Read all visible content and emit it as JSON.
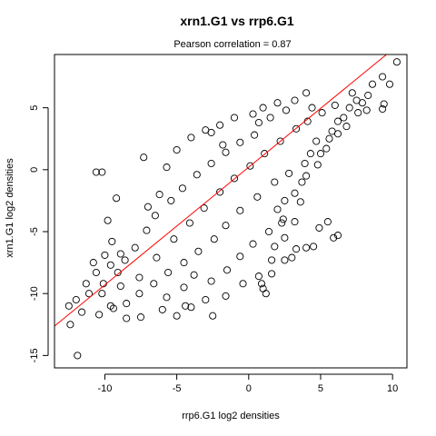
{
  "chart_data": {
    "type": "scatter",
    "title": "xrn1.G1 vs rrp6.G1",
    "subtitle_prefix": "Pearson correlation = ",
    "subtitle_value": "0.87",
    "xlabel": "rrp6.G1 log2 densities",
    "ylabel": "xrn1.G1 log2 densities",
    "xlim": [
      -13.5,
      11.0
    ],
    "ylim": [
      -16.0,
      9.3
    ],
    "xticks": [
      -10,
      -5,
      0,
      5,
      10
    ],
    "xtick_labels": [
      "-10",
      "-5",
      "0",
      "5",
      "10"
    ],
    "yticks": [
      -15,
      -10,
      -5,
      0,
      5
    ],
    "ytick_labels": [
      "-15",
      "-10",
      "-5",
      "0",
      "5"
    ],
    "grid": false,
    "legend": "none",
    "fit_line": {
      "intercept": 0.2,
      "slope": 0.95,
      "color": "#ff0000"
    },
    "point_color": "#000000",
    "points": [
      [
        10.3,
        8.7
      ],
      [
        9.3,
        7.5
      ],
      [
        9.8,
        6.9
      ],
      [
        8.6,
        6.9
      ],
      [
        8.3,
        6.0
      ],
      [
        9.4,
        5.3
      ],
      [
        9.3,
        4.9
      ],
      [
        8.2,
        4.8
      ],
      [
        7.6,
        4.6
      ],
      [
        7.5,
        5.6
      ],
      [
        7.0,
        5.0
      ],
      [
        6.6,
        4.2
      ],
      [
        6.2,
        3.9
      ],
      [
        5.8,
        3.1
      ],
      [
        4.3,
        1.3
      ],
      [
        4.7,
        2.3
      ],
      [
        5.4,
        1.7
      ],
      [
        4.8,
        0.4
      ],
      [
        4.0,
        -0.5
      ],
      [
        3.7,
        -1.0
      ],
      [
        3.2,
        -1.9
      ],
      [
        3.6,
        -2.6
      ],
      [
        2.5,
        -2.5
      ],
      [
        2.4,
        -4.0
      ],
      [
        2.5,
        -5.5
      ],
      [
        3.2,
        -4.2
      ],
      [
        4.0,
        -6.3
      ],
      [
        4.5,
        -6.2
      ],
      [
        5.5,
        -4.2
      ],
      [
        4.9,
        -4.7
      ],
      [
        6.2,
        -5.3
      ],
      [
        5.9,
        -5.5
      ],
      [
        3.3,
        -6.4
      ],
      [
        3.0,
        -7.1
      ],
      [
        2.5,
        -7.3
      ],
      [
        1.6,
        -7.3
      ],
      [
        1.6,
        -8.4
      ],
      [
        0.9,
        -9.2
      ],
      [
        1.0,
        -9.6
      ],
      [
        1.2,
        -10.0
      ],
      [
        0.7,
        -8.6
      ],
      [
        -1.6,
        -10.2
      ],
      [
        -2.5,
        -11.8
      ],
      [
        -3.0,
        -10.5
      ],
      [
        -4.0,
        -11.1
      ],
      [
        -4.4,
        -11.0
      ],
      [
        -5.0,
        -11.8
      ],
      [
        -6.0,
        -11.3
      ],
      [
        -7.5,
        -11.9
      ],
      [
        -8.5,
        -12.0
      ],
      [
        -9.4,
        -11.2
      ],
      [
        -10.4,
        -11.7
      ],
      [
        -11.6,
        -11.5
      ],
      [
        -12.4,
        -12.5
      ],
      [
        -12.5,
        -11.0
      ],
      [
        -11.9,
        -15.0
      ],
      [
        -12.0,
        -10.5
      ],
      [
        -11.3,
        -9.2
      ],
      [
        -10.6,
        -8.3
      ],
      [
        -10.8,
        -7.5
      ],
      [
        -10.0,
        -6.9
      ],
      [
        -9.8,
        -4.1
      ],
      [
        -9.5,
        -5.8
      ],
      [
        -8.9,
        -6.8
      ],
      [
        -9.2,
        -2.3
      ],
      [
        -10.6,
        -0.2
      ],
      [
        -10.2,
        -0.2
      ],
      [
        -7.3,
        1.0
      ],
      [
        -7.0,
        -3.0
      ],
      [
        -6.2,
        -2.0
      ],
      [
        -5.7,
        0.2
      ],
      [
        -5.0,
        1.6
      ],
      [
        -4.0,
        2.6
      ],
      [
        -3.0,
        3.2
      ],
      [
        -2.0,
        3.6
      ],
      [
        -1.0,
        4.2
      ],
      [
        0.3,
        4.5
      ],
      [
        1.0,
        5.0
      ],
      [
        2.0,
        5.4
      ],
      [
        3.2,
        5.6
      ],
      [
        4.0,
        6.2
      ],
      [
        -2.6,
        3.0
      ],
      [
        -1.8,
        2.0
      ],
      [
        0.7,
        3.8
      ],
      [
        1.5,
        4.2
      ],
      [
        2.6,
        4.8
      ],
      [
        4.4,
        5.0
      ],
      [
        5.1,
        4.6
      ],
      [
        6.0,
        5.2
      ],
      [
        7.2,
        6.2
      ],
      [
        7.9,
        5.4
      ],
      [
        6.8,
        3.5
      ],
      [
        5.6,
        2.5
      ],
      [
        5.0,
        1.3
      ],
      [
        6.2,
        2.9
      ],
      [
        3.9,
        0.5
      ],
      [
        2.8,
        -0.3
      ],
      [
        1.8,
        -1.0
      ],
      [
        0.6,
        -2.2
      ],
      [
        -0.6,
        -3.3
      ],
      [
        -1.6,
        -4.5
      ],
      [
        -2.4,
        -5.6
      ],
      [
        -3.5,
        -6.6
      ],
      [
        -4.5,
        -7.5
      ],
      [
        -5.6,
        -8.3
      ],
      [
        -6.6,
        -9.2
      ],
      [
        -7.6,
        -10.0
      ],
      [
        -8.5,
        -10.8
      ],
      [
        -9.6,
        -11.0
      ],
      [
        -10.2,
        -10.0
      ],
      [
        -8.9,
        -9.4
      ],
      [
        -7.6,
        -8.7
      ],
      [
        -6.4,
        -7.1
      ],
      [
        -5.2,
        -5.6
      ],
      [
        -4.1,
        -4.3
      ],
      [
        -3.1,
        -3.1
      ],
      [
        -2.0,
        -1.8
      ],
      [
        -1.0,
        -0.7
      ],
      [
        0.1,
        0.3
      ],
      [
        1.1,
        1.3
      ],
      [
        2.2,
        2.3
      ],
      [
        3.3,
        3.3
      ],
      [
        4.1,
        3.9
      ],
      [
        -7.1,
        -4.9
      ],
      [
        -6.5,
        -3.7
      ],
      [
        -5.4,
        -2.5
      ],
      [
        -4.6,
        -1.5
      ],
      [
        -3.6,
        -0.4
      ],
      [
        -2.6,
        0.5
      ],
      [
        -1.6,
        1.4
      ],
      [
        -0.6,
        2.2
      ],
      [
        0.4,
        2.8
      ],
      [
        -8.6,
        -7.3
      ],
      [
        -9.1,
        -8.3
      ],
      [
        -7.9,
        -6.3
      ],
      [
        -3.8,
        -8.5
      ],
      [
        -2.6,
        -9.0
      ],
      [
        -1.5,
        -8.1
      ],
      [
        -0.6,
        -7.0
      ],
      [
        0.3,
        -6.0
      ],
      [
        1.4,
        -5.0
      ],
      [
        2.3,
        -4.3
      ],
      [
        -5.7,
        -10.3
      ],
      [
        -4.5,
        -9.5
      ],
      [
        -0.4,
        -9.2
      ],
      [
        1.8,
        -6.2
      ],
      [
        2.0,
        -3.2
      ],
      [
        -11.1,
        -10.0
      ],
      [
        -10.1,
        -9.2
      ],
      [
        -9.6,
        -7.7
      ]
    ]
  }
}
